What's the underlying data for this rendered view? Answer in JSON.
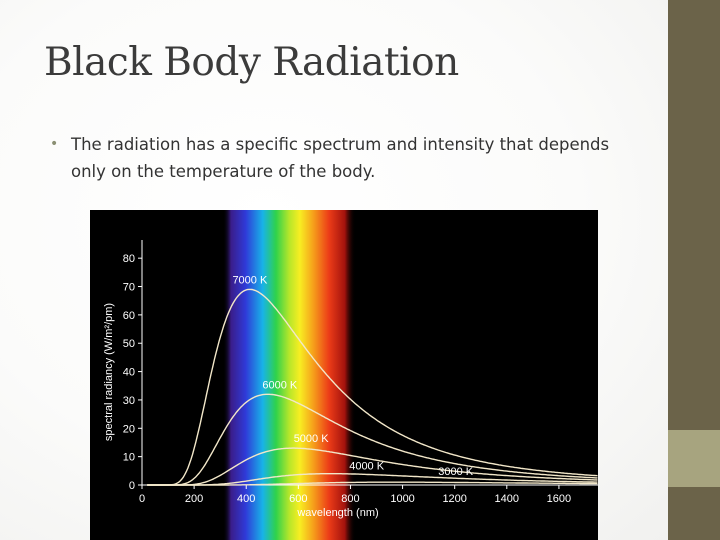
{
  "slide": {
    "title": "Black Body Radiation",
    "bullet": "The radiation has a specific spectrum and intensity that depends only on the temperature of the body."
  },
  "colors": {
    "strip_dark": "#6b6349",
    "strip_light": "#a7a47f",
    "curve": "#f2e7c9",
    "chart_bg": "#000000"
  },
  "chart_data": {
    "type": "line",
    "xlabel": "wavelength (nm)",
    "ylabel": "spectral radiancy (W/m²/pm)",
    "xlim": [
      0,
      1750
    ],
    "ylim": [
      0,
      85
    ],
    "xticks": [
      0,
      200,
      400,
      600,
      800,
      1000,
      1200,
      1400,
      1600
    ],
    "yticks": [
      0,
      10,
      20,
      30,
      40,
      50,
      60,
      70,
      80
    ],
    "visible_band_nm": [
      380,
      750
    ],
    "series": [
      {
        "name": "7000 K",
        "temperature_K": 7000,
        "peak_x": 414,
        "peak_y": 69
      },
      {
        "name": "6000 K",
        "temperature_K": 6000,
        "peak_x": 483,
        "peak_y": 32
      },
      {
        "name": "5000 K",
        "temperature_K": 5000,
        "peak_x": 580,
        "peak_y": 13
      },
      {
        "name": "4000 K",
        "temperature_K": 4000,
        "peak_x": 724,
        "peak_y": 4
      },
      {
        "name": "3000 K",
        "temperature_K": 3000,
        "peak_x": 966,
        "peak_y": 1
      }
    ]
  }
}
